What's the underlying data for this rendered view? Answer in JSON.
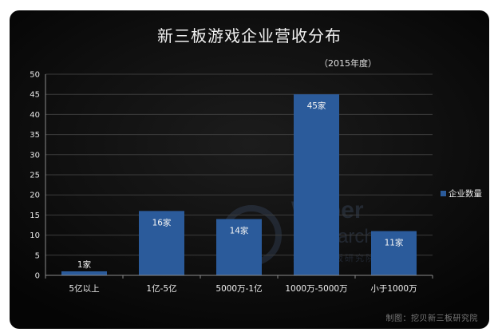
{
  "chart_data": {
    "type": "bar",
    "title": "新三板游戏企业营收分布",
    "subtitle": "（2015年度）",
    "categories": [
      "5亿以上",
      "1亿-5亿",
      "5000万-1亿",
      "1000万-5000万",
      "小于1000万"
    ],
    "series": [
      {
        "name": "企业数量",
        "values": [
          1,
          16,
          14,
          45,
          11
        ],
        "data_labels": [
          "1家",
          "16家",
          "14家",
          "45家",
          "11家"
        ],
        "color": "#2b5b9b"
      }
    ],
    "xlabel": "",
    "ylabel": "",
    "ylim": [
      0,
      50
    ],
    "yticks": [
      0,
      5,
      10,
      15,
      20,
      25,
      30,
      35,
      40,
      45,
      50
    ],
    "grid": true,
    "legend_position": "right"
  },
  "watermark": {
    "line1": "Waber",
    "line2": "Research",
    "line3": "挖贝新三板研究院"
  },
  "credit": "制图：挖贝新三板研究院",
  "colors": {
    "bar": "#2b5b9b",
    "background": "#121212",
    "grid": "#3c3c3c",
    "text": "#f0f0f0"
  }
}
